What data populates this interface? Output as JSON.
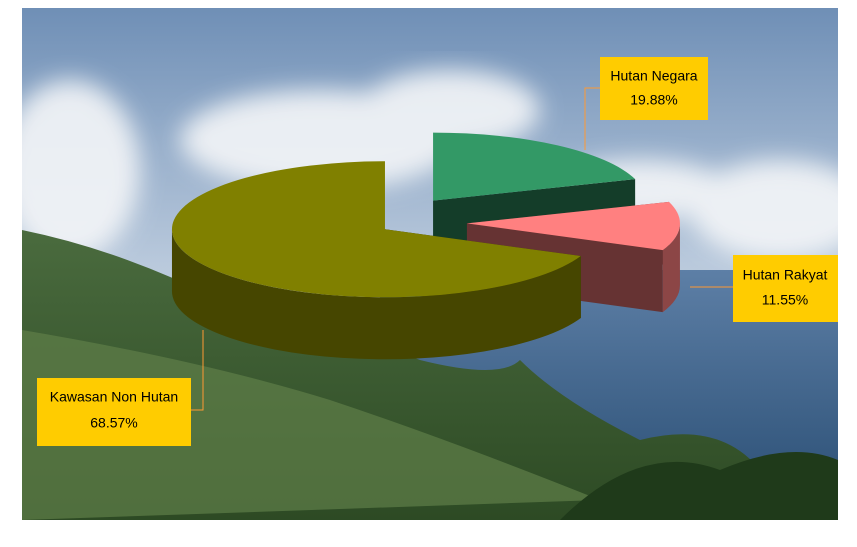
{
  "chart_data": {
    "type": "pie3d",
    "categories": [
      "Hutan Negara",
      "Hutan Rakyat",
      "Kawasan Non Hutan"
    ],
    "values": [
      19.88,
      11.55,
      68.57
    ],
    "value_labels": [
      "19.88%",
      "11.55%",
      "68.57%"
    ],
    "colors": [
      "#339966",
      "#ff8080",
      "#808000"
    ]
  }
}
